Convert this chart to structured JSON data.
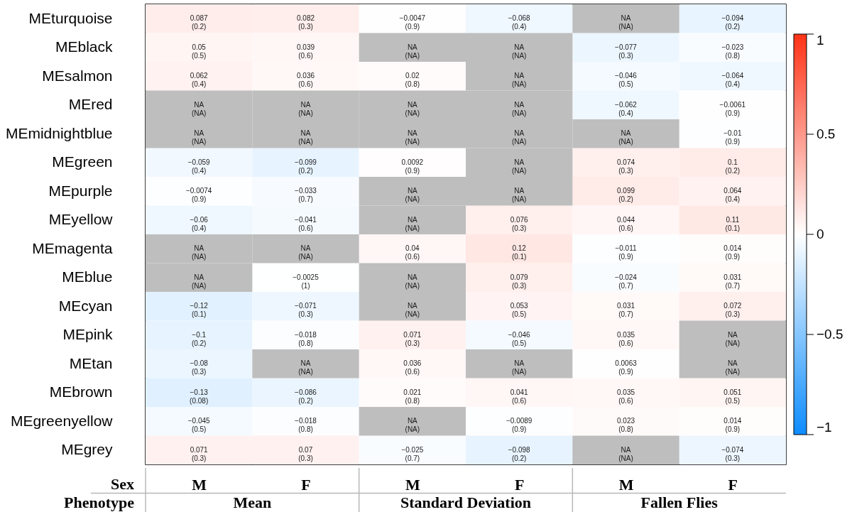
{
  "chart_data": {
    "type": "heatmap",
    "xlabel": "Sex",
    "annotations": [
      "Phenotype",
      "Mean",
      "Standard Deviation",
      "Fallen Flies"
    ],
    "categories": [
      "M",
      "F",
      "M",
      "F",
      "M",
      "F"
    ],
    "y_categories": [
      "MEturquoise",
      "MEblack",
      "MEsalmon",
      "MEred",
      "MEmidnightblue",
      "MEgreen",
      "MEpurple",
      "MEyellow",
      "MEmagenta",
      "MEblue",
      "MEcyan",
      "MEpink",
      "MEtan",
      "MEbrown",
      "MEgreenyellow",
      "MEgrey"
    ],
    "cells": [
      [
        0.087,
        0.082,
        -0.0047,
        -0.068,
        null,
        -0.094
      ],
      [
        0.05,
        0.039,
        null,
        null,
        -0.077,
        -0.023
      ],
      [
        0.062,
        0.036,
        0.02,
        null,
        -0.046,
        -0.064
      ],
      [
        null,
        null,
        null,
        null,
        -0.062,
        -0.0061
      ],
      [
        null,
        null,
        null,
        null,
        null,
        -0.01
      ],
      [
        -0.059,
        -0.099,
        0.0092,
        null,
        0.074,
        0.1
      ],
      [
        -0.0074,
        -0.033,
        null,
        null,
        0.099,
        0.064
      ],
      [
        -0.06,
        -0.041,
        null,
        0.076,
        0.044,
        0.11
      ],
      [
        null,
        null,
        0.04,
        0.12,
        -0.011,
        0.014
      ],
      [
        null,
        -0.0025,
        null,
        0.079,
        -0.024,
        0.031
      ],
      [
        -0.12,
        -0.071,
        null,
        0.053,
        0.031,
        0.072
      ],
      [
        -0.1,
        -0.018,
        0.071,
        -0.046,
        0.035,
        null
      ],
      [
        -0.08,
        null,
        0.036,
        null,
        0.0063,
        null
      ],
      [
        -0.13,
        -0.086,
        0.021,
        0.041,
        0.035,
        0.051
      ],
      [
        -0.045,
        -0.018,
        null,
        -0.0089,
        0.023,
        0.014
      ],
      [
        0.071,
        0.07,
        -0.025,
        -0.098,
        null,
        -0.074
      ]
    ],
    "cell_labels": [
      [
        "0.087\n(0.2)",
        "0.082\n(0.3)",
        "−0.0047\n(0.9)",
        "−0.068\n(0.4)",
        "NA\n(NA)",
        "−0.094\n(0.2)"
      ],
      [
        "0.05\n(0.5)",
        "0.039\n(0.6)",
        "NA\n(NA)",
        "NA\n(NA)",
        "−0.077\n(0.3)",
        "−0.023\n(0.8)"
      ],
      [
        "0.062\n(0.4)",
        "0.036\n(0.6)",
        "0.02\n(0.8)",
        "NA\n(NA)",
        "−0.046\n(0.5)",
        "−0.064\n(0.4)"
      ],
      [
        "NA\n(NA)",
        "NA\n(NA)",
        "NA\n(NA)",
        "NA\n(NA)",
        "−0.062\n(0.4)",
        "−0.0061\n(0.9)"
      ],
      [
        "NA\n(NA)",
        "NA\n(NA)",
        "NA\n(NA)",
        "NA\n(NA)",
        "NA\n(NA)",
        "−0.01\n(0.9)"
      ],
      [
        "−0.059\n(0.4)",
        "−0.099\n(0.2)",
        "0.0092\n(0.9)",
        "NA\n(NA)",
        "0.074\n(0.3)",
        "0.1\n(0.2)"
      ],
      [
        "−0.0074\n(0.9)",
        "−0.033\n(0.7)",
        "NA\n(NA)",
        "NA\n(NA)",
        "0.099\n(0.2)",
        "0.064\n(0.4)"
      ],
      [
        "−0.06\n(0.4)",
        "−0.041\n(0.6)",
        "NA\n(NA)",
        "0.076\n(0.3)",
        "0.044\n(0.6)",
        "0.11\n(0.1)"
      ],
      [
        "NA\n(NA)",
        "NA\n(NA)",
        "0.04\n(0.6)",
        "0.12\n(0.1)",
        "−0.011\n(0.9)",
        "0.014\n(0.9)"
      ],
      [
        "NA\n(NA)",
        "−0.0025\n(1)",
        "NA\n(NA)",
        "0.079\n(0.3)",
        "−0.024\n(0.7)",
        "0.031\n(0.7)"
      ],
      [
        "−0.12\n(0.1)",
        "−0.071\n(0.3)",
        "NA\n(NA)",
        "0.053\n(0.5)",
        "0.031\n(0.7)",
        "0.072\n(0.3)"
      ],
      [
        "−0.1\n(0.2)",
        "−0.018\n(0.8)",
        "0.071\n(0.3)",
        "−0.046\n(0.5)",
        "0.035\n(0.6)",
        "NA\n(NA)"
      ],
      [
        "−0.08\n(0.3)",
        "NA\n(NA)",
        "0.036\n(0.6)",
        "NA\n(NA)",
        "0.0063\n(0.9)",
        "NA\n(NA)"
      ],
      [
        "−0.13\n(0.08)",
        "−0.086\n(0.2)",
        "0.021\n(0.8)",
        "0.041\n(0.6)",
        "0.035\n(0.6)",
        "0.051\n(0.5)"
      ],
      [
        "−0.045\n(0.5)",
        "−0.018\n(0.8)",
        "NA\n(NA)",
        "−0.0089\n(0.9)",
        "0.023\n(0.8)",
        "0.014\n(0.9)"
      ],
      [
        "0.071\n(0.3)",
        "0.07\n(0.3)",
        "−0.025\n(0.7)",
        "−0.098\n(0.2)",
        "NA\n(NA)",
        "−0.074\n(0.3)"
      ]
    ],
    "clim": [
      -1,
      1
    ],
    "cticks": [
      -1,
      -0.5,
      0,
      0.5,
      1
    ]
  }
}
